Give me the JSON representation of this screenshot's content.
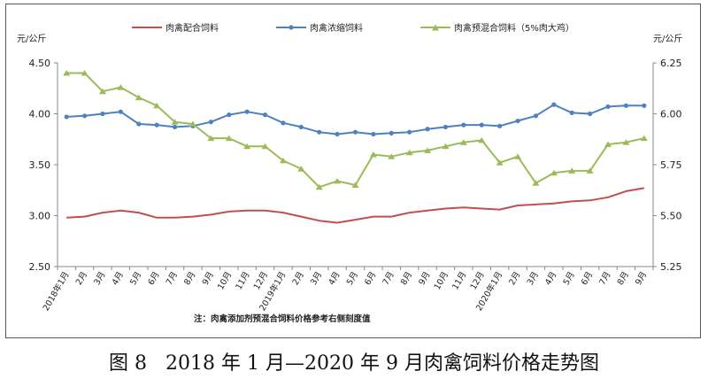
{
  "caption": {
    "label": "图 8",
    "text": "2018 年 1 月—2020 年 9 月肉禽饲料价格走势图"
  },
  "note": "注：肉禽添加剂预混合饲料价格参考右侧刻度值",
  "colors": {
    "series_red": "#c0504d",
    "series_blue": "#4f81bd",
    "series_green": "#9bbb59",
    "axis": "#888888"
  },
  "chart_data": {
    "type": "line",
    "title": "",
    "xlabel": "",
    "ylabel_left": "元/公斤",
    "ylabel_right": "元/公斤",
    "legend_position": "top",
    "grid": false,
    "ylim_left": [
      2.5,
      4.5
    ],
    "yticks_left": [
      "2.50",
      "3.00",
      "3.50",
      "4.00",
      "4.50"
    ],
    "ylim_right": [
      5.25,
      6.25
    ],
    "yticks_right": [
      "5.25",
      "5.50",
      "5.75",
      "6.00",
      "6.25"
    ],
    "categories": [
      "2018年1月",
      "2月",
      "3月",
      "4月",
      "5月",
      "6月",
      "7月",
      "8月",
      "9月",
      "10月",
      "11月",
      "12月",
      "2019年1月",
      "2月",
      "3月",
      "4月",
      "5月",
      "6月",
      "7月",
      "8月",
      "9月",
      "10月",
      "11月",
      "12月",
      "2020年1月",
      "2月",
      "3月",
      "4月",
      "5月",
      "6月",
      "7月",
      "8月",
      "9月"
    ],
    "series": [
      {
        "name": "肉禽配合饲料",
        "axis": "left",
        "marker": "none",
        "values": [
          2.98,
          2.99,
          3.03,
          3.05,
          3.03,
          2.98,
          2.98,
          2.99,
          3.01,
          3.04,
          3.05,
          3.05,
          3.03,
          2.99,
          2.95,
          2.93,
          2.96,
          2.99,
          2.99,
          3.03,
          3.05,
          3.07,
          3.08,
          3.07,
          3.06,
          3.1,
          3.11,
          3.12,
          3.14,
          3.15,
          3.18,
          3.24,
          3.27
        ]
      },
      {
        "name": "肉禽浓缩饲料",
        "axis": "left",
        "marker": "circle",
        "values": [
          3.97,
          3.98,
          4.0,
          4.02,
          3.9,
          3.89,
          3.87,
          3.88,
          3.92,
          3.99,
          4.02,
          3.99,
          3.91,
          3.87,
          3.82,
          3.8,
          3.82,
          3.8,
          3.81,
          3.82,
          3.85,
          3.87,
          3.89,
          3.89,
          3.88,
          3.93,
          3.98,
          4.09,
          4.01,
          4.0,
          4.07,
          4.08,
          4.08
        ]
      },
      {
        "name": "肉禽预混合饲料（5%肉大鸡）",
        "axis": "right",
        "marker": "triangle",
        "values": [
          6.2,
          6.2,
          6.11,
          6.13,
          6.08,
          6.04,
          5.96,
          5.95,
          5.88,
          5.88,
          5.84,
          5.84,
          5.77,
          5.73,
          5.64,
          5.67,
          5.65,
          5.8,
          5.79,
          5.81,
          5.82,
          5.84,
          5.86,
          5.87,
          5.76,
          5.79,
          5.66,
          5.71,
          5.72,
          5.72,
          5.85,
          5.86,
          5.88
        ]
      }
    ]
  }
}
